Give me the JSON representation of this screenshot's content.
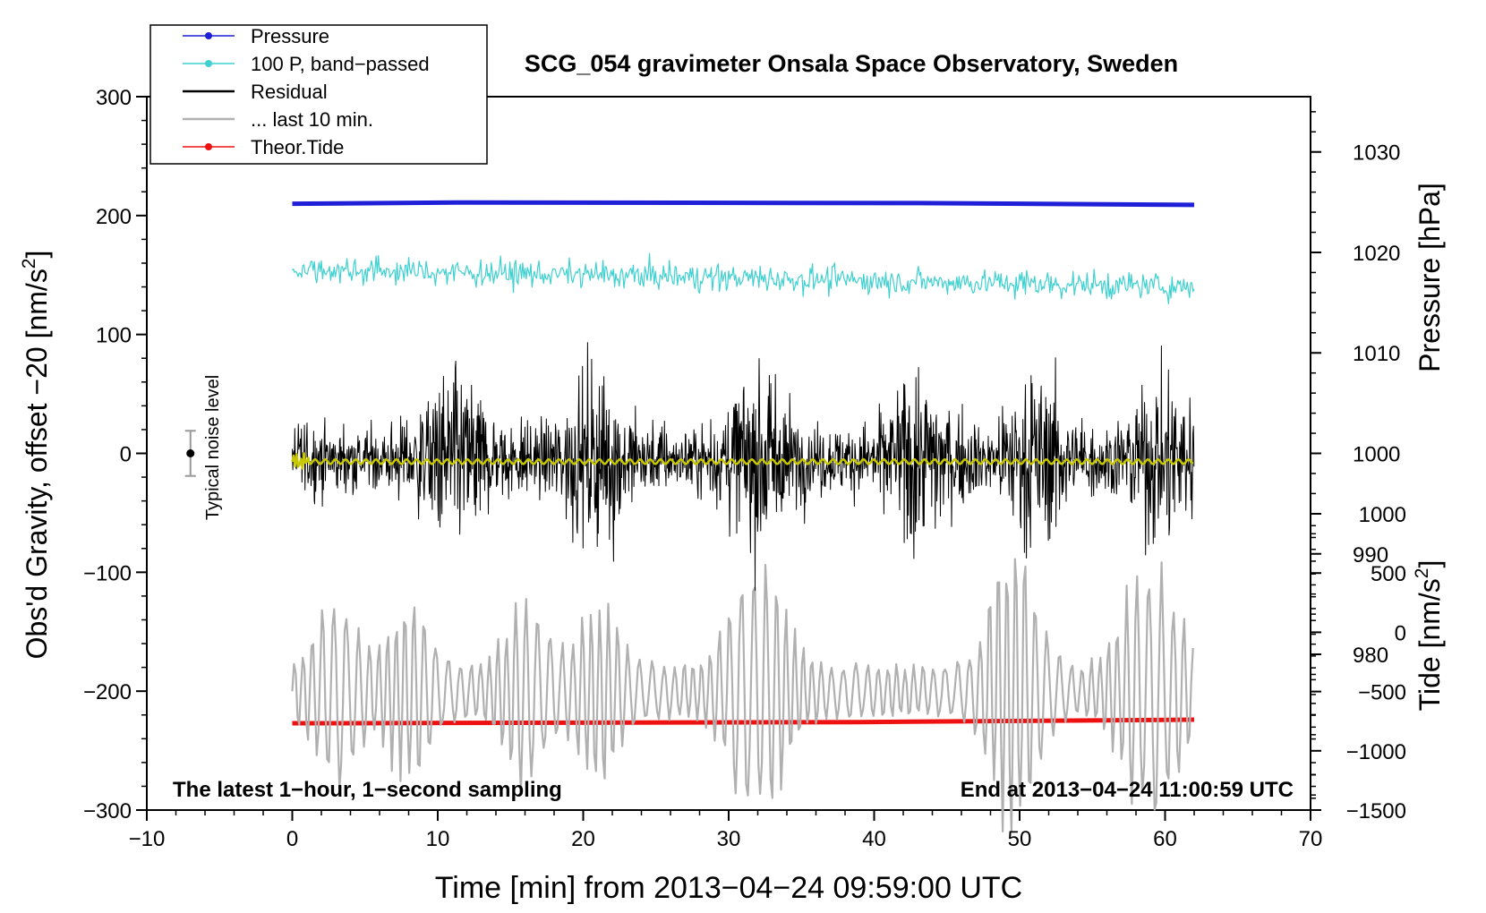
{
  "chart_data": {
    "type": "line",
    "title": "SCG_054 gravimeter Onsala Space Observatory, Sweden",
    "xlabel": "Time [min] from 2013−04−24 09:59:00 UTC",
    "ylabel_left_main": "Obs'd Gravity, offset −20 [nm/s",
    "ylabel_left_sup": "2",
    "ylabel_left_end": "]",
    "ylabel_right_pressure": "Pressure [hPa]",
    "ylabel_right_tide_main": "Tide [nm/s",
    "ylabel_right_tide_sup": "2",
    "ylabel_right_tide_end": "]",
    "xlim": [
      -10,
      70
    ],
    "ylim_left": [
      -300,
      300
    ],
    "x_ticks": [
      -10,
      0,
      10,
      20,
      30,
      40,
      50,
      60,
      70
    ],
    "x_tick_labels": [
      "−10",
      "0",
      "10",
      "20",
      "30",
      "40",
      "50",
      "60",
      "70"
    ],
    "y_left_ticks": [
      300,
      200,
      100,
      0,
      -100,
      -200,
      -300
    ],
    "y_left_tick_labels": [
      "300",
      "200",
      "100",
      "0",
      "−100",
      "−200",
      "−300"
    ],
    "pressure_axis": {
      "range": [
        964.5,
        1035.5
      ],
      "ticks": [
        1030,
        1020,
        1010,
        1000,
        990,
        980
      ],
      "tick_labels": [
        "1030",
        "1020",
        "1010",
        "1000",
        "990",
        "980"
      ]
    },
    "tide_axis": {
      "range": [
        -1500,
        1000
      ],
      "ticks": [
        1000,
        500,
        0,
        -500,
        -1000,
        -1500
      ],
      "tick_labels": [
        "1000",
        "500",
        "0",
        "−500",
        "−1000",
        "−1500"
      ]
    },
    "legend": {
      "placement": "top-left",
      "entries": [
        {
          "label": "Pressure",
          "color": "#1f1fd8",
          "marker": true
        },
        {
          "label": "100 P, band−passed",
          "color": "#3fd0d0",
          "marker": true
        },
        {
          "label": "Residual",
          "color": "#000000",
          "marker": false
        },
        {
          "label": "... last 10 min.",
          "color": "#b0b0b0",
          "marker": false
        },
        {
          "label": "Theor.Tide",
          "color": "#ee1111",
          "marker": true
        }
      ]
    },
    "noise_bar": {
      "label": "Typical noise level",
      "x": -7,
      "y_center": 0,
      "y_half_range": 19
    },
    "annotation_left": "The latest 1−hour, 1−second sampling",
    "annotation_right": "End at 2013−04−24 11:00:59 UTC",
    "series": [
      {
        "name": "Pressure",
        "color": "#1f1fd8",
        "x_range": [
          0,
          62
        ],
        "plotted_level_nm_s2": 210,
        "trend_end_nm_s2": 209
      },
      {
        "name": "100 P, band−passed",
        "color": "#3fd0d0",
        "x_range": [
          0,
          62
        ],
        "mean_start_nm_s2": 155,
        "mean_end_nm_s2": 140,
        "amplitude_nm_s2": 12
      },
      {
        "name": "Residual",
        "color": "#000000",
        "x_range": [
          0,
          62
        ],
        "mean_nm_s2": -5,
        "amplitude_nm_s2": 60,
        "max_nm_s2": 117,
        "min_nm_s2": -145,
        "envelope_peaks_min": [
          11,
          21,
          32,
          43,
          51,
          60
        ]
      },
      {
        "name": "Residual smoothed",
        "color": "#c8c800",
        "x_range": [
          0,
          62
        ],
        "mean_nm_s2": -7
      },
      {
        "name": "... last 10 min.",
        "color": "#b0b0b0",
        "x_range": [
          0,
          62
        ],
        "mean_nm_s2": -200,
        "amplitude_nm_s2": 55,
        "max_nm_s2": -88,
        "min_nm_s2": -305
      },
      {
        "name": "Theor.Tide",
        "color": "#ee1111",
        "x_range": [
          0,
          62
        ],
        "start_nm_s2": -227,
        "end_nm_s2": -224
      }
    ]
  }
}
